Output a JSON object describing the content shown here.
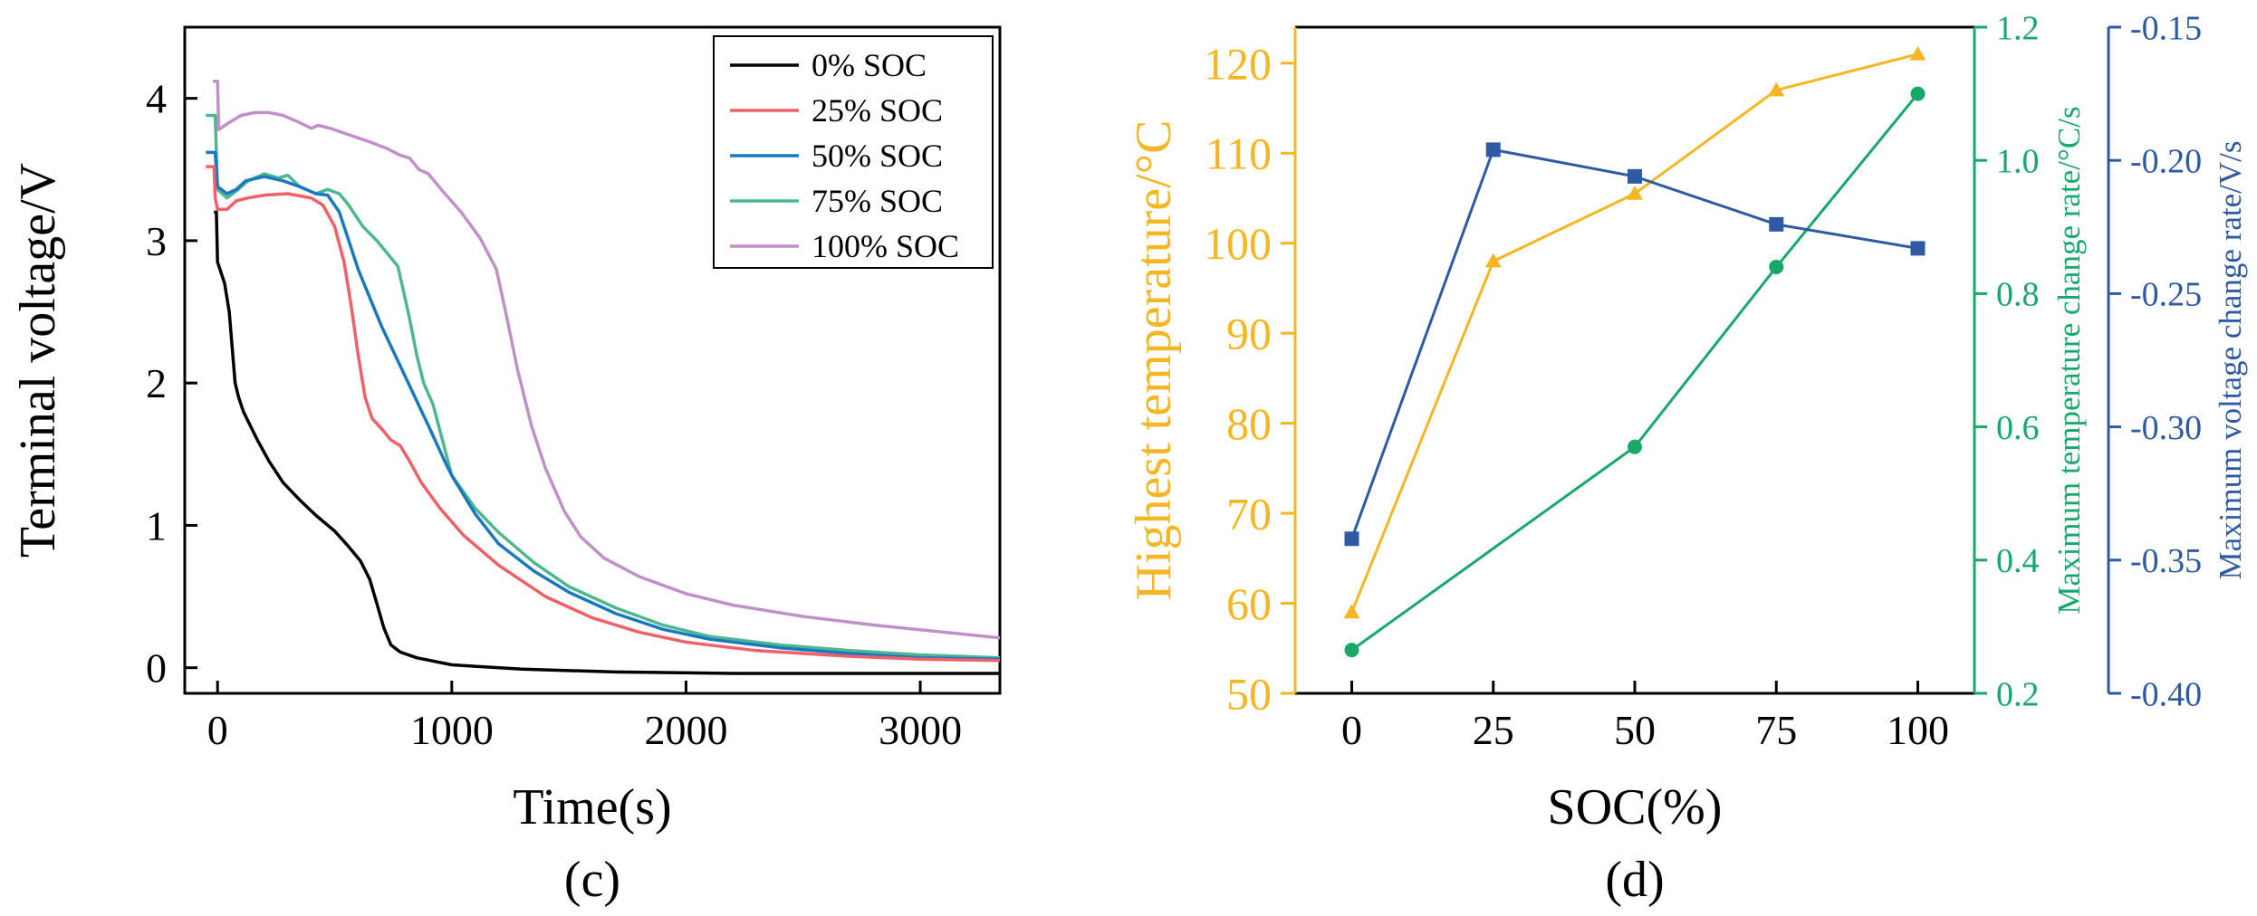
{
  "chart_data": [
    {
      "panel_label": "(c)",
      "type": "line",
      "xlabel": "Time(s)",
      "ylabel": "Terminal voltage/V",
      "xlim": [
        -140,
        3340
      ],
      "ylim": [
        -0.18,
        4.5
      ],
      "xticks": [
        0,
        1000,
        2000,
        3000
      ],
      "xtick_labels": [
        "0",
        "1000",
        "2000",
        "3000"
      ],
      "yticks": [
        0,
        1,
        2,
        3,
        4
      ],
      "ytick_labels": [
        "0",
        "1",
        "2",
        "3",
        "4"
      ],
      "legend_position": "top-right",
      "series": [
        {
          "name": "0% SOC",
          "color": "#000000",
          "points": [
            [
              -15,
              3.2
            ],
            [
              -10,
              3.2
            ],
            [
              -5,
              3.2
            ],
            [
              0,
              2.85
            ],
            [
              30,
              2.7
            ],
            [
              50,
              2.5
            ],
            [
              65,
              2.2
            ],
            [
              75,
              2.0
            ],
            [
              90,
              1.9
            ],
            [
              110,
              1.8
            ],
            [
              140,
              1.7
            ],
            [
              170,
              1.6
            ],
            [
              220,
              1.45
            ],
            [
              280,
              1.3
            ],
            [
              350,
              1.18
            ],
            [
              420,
              1.07
            ],
            [
              500,
              0.96
            ],
            [
              560,
              0.85
            ],
            [
              610,
              0.75
            ],
            [
              650,
              0.62
            ],
            [
              680,
              0.45
            ],
            [
              710,
              0.28
            ],
            [
              740,
              0.16
            ],
            [
              780,
              0.11
            ],
            [
              850,
              0.07
            ],
            [
              1000,
              0.02
            ],
            [
              1300,
              -0.01
            ],
            [
              1700,
              -0.03
            ],
            [
              2200,
              -0.04
            ],
            [
              3340,
              -0.04
            ]
          ]
        },
        {
          "name": "25% SOC",
          "color": "#f0606a",
          "points": [
            [
              -50,
              3.52
            ],
            [
              -15,
              3.52
            ],
            [
              -10,
              3.3
            ],
            [
              0,
              3.22
            ],
            [
              40,
              3.22
            ],
            [
              80,
              3.28
            ],
            [
              130,
              3.3
            ],
            [
              200,
              3.32
            ],
            [
              300,
              3.33
            ],
            [
              400,
              3.3
            ],
            [
              450,
              3.25
            ],
            [
              500,
              3.1
            ],
            [
              540,
              2.85
            ],
            [
              570,
              2.55
            ],
            [
              600,
              2.2
            ],
            [
              630,
              1.9
            ],
            [
              660,
              1.75
            ],
            [
              700,
              1.68
            ],
            [
              740,
              1.6
            ],
            [
              780,
              1.56
            ],
            [
              820,
              1.45
            ],
            [
              870,
              1.3
            ],
            [
              950,
              1.12
            ],
            [
              1050,
              0.93
            ],
            [
              1200,
              0.72
            ],
            [
              1400,
              0.5
            ],
            [
              1600,
              0.35
            ],
            [
              1800,
              0.25
            ],
            [
              2000,
              0.18
            ],
            [
              2300,
              0.12
            ],
            [
              2700,
              0.08
            ],
            [
              3000,
              0.06
            ],
            [
              3340,
              0.05
            ]
          ]
        },
        {
          "name": "50% SOC",
          "color": "#1a78c0",
          "points": [
            [
              -50,
              3.62
            ],
            [
              -10,
              3.62
            ],
            [
              0,
              3.38
            ],
            [
              40,
              3.33
            ],
            [
              80,
              3.36
            ],
            [
              120,
              3.42
            ],
            [
              200,
              3.45
            ],
            [
              280,
              3.42
            ],
            [
              350,
              3.38
            ],
            [
              420,
              3.33
            ],
            [
              470,
              3.32
            ],
            [
              520,
              3.2
            ],
            [
              600,
              2.8
            ],
            [
              700,
              2.4
            ],
            [
              800,
              2.05
            ],
            [
              900,
              1.7
            ],
            [
              970,
              1.45
            ],
            [
              1000,
              1.35
            ],
            [
              1100,
              1.08
            ],
            [
              1200,
              0.87
            ],
            [
              1350,
              0.68
            ],
            [
              1500,
              0.53
            ],
            [
              1700,
              0.38
            ],
            [
              1900,
              0.27
            ],
            [
              2100,
              0.2
            ],
            [
              2400,
              0.14
            ],
            [
              2700,
              0.1
            ],
            [
              3000,
              0.07
            ],
            [
              3340,
              0.06
            ]
          ]
        },
        {
          "name": "75% SOC",
          "color": "#4db890",
          "points": [
            [
              -50,
              3.88
            ],
            [
              -10,
              3.88
            ],
            [
              0,
              3.36
            ],
            [
              40,
              3.3
            ],
            [
              80,
              3.35
            ],
            [
              130,
              3.42
            ],
            [
              200,
              3.47
            ],
            [
              260,
              3.44
            ],
            [
              300,
              3.46
            ],
            [
              350,
              3.38
            ],
            [
              420,
              3.33
            ],
            [
              470,
              3.36
            ],
            [
              520,
              3.33
            ],
            [
              560,
              3.25
            ],
            [
              620,
              3.1
            ],
            [
              680,
              3.0
            ],
            [
              730,
              2.9
            ],
            [
              770,
              2.82
            ],
            [
              800,
              2.6
            ],
            [
              820,
              2.45
            ],
            [
              850,
              2.2
            ],
            [
              880,
              2.0
            ],
            [
              920,
              1.85
            ],
            [
              960,
              1.6
            ],
            [
              1000,
              1.35
            ],
            [
              1100,
              1.12
            ],
            [
              1200,
              0.95
            ],
            [
              1350,
              0.74
            ],
            [
              1500,
              0.57
            ],
            [
              1700,
              0.42
            ],
            [
              1900,
              0.3
            ],
            [
              2100,
              0.22
            ],
            [
              2400,
              0.16
            ],
            [
              2700,
              0.12
            ],
            [
              3000,
              0.09
            ],
            [
              3340,
              0.07
            ]
          ]
        },
        {
          "name": "100% SOC",
          "color": "#c090c8",
          "points": [
            [
              -20,
              4.12
            ],
            [
              0,
              4.12
            ],
            [
              5,
              3.78
            ],
            [
              40,
              3.82
            ],
            [
              100,
              3.88
            ],
            [
              160,
              3.9
            ],
            [
              220,
              3.9
            ],
            [
              280,
              3.88
            ],
            [
              350,
              3.83
            ],
            [
              400,
              3.79
            ],
            [
              430,
              3.81
            ],
            [
              480,
              3.79
            ],
            [
              550,
              3.75
            ],
            [
              640,
              3.7
            ],
            [
              720,
              3.65
            ],
            [
              780,
              3.6
            ],
            [
              820,
              3.58
            ],
            [
              860,
              3.5
            ],
            [
              900,
              3.47
            ],
            [
              960,
              3.35
            ],
            [
              1040,
              3.2
            ],
            [
              1120,
              3.02
            ],
            [
              1190,
              2.8
            ],
            [
              1230,
              2.5
            ],
            [
              1280,
              2.1
            ],
            [
              1340,
              1.7
            ],
            [
              1400,
              1.4
            ],
            [
              1480,
              1.1
            ],
            [
              1550,
              0.92
            ],
            [
              1650,
              0.77
            ],
            [
              1800,
              0.64
            ],
            [
              2000,
              0.52
            ],
            [
              2200,
              0.44
            ],
            [
              2500,
              0.36
            ],
            [
              2800,
              0.3
            ],
            [
              3100,
              0.25
            ],
            [
              3340,
              0.21
            ]
          ]
        }
      ]
    },
    {
      "panel_label": "(d)",
      "type": "line",
      "xlabel": "SOC(%)",
      "categories": [
        0,
        25,
        50,
        75,
        100
      ],
      "xlim": [
        -10,
        110
      ],
      "xtick_labels": [
        "0",
        "25",
        "50",
        "75",
        "100"
      ],
      "axes": {
        "left": {
          "label": "Highest temperature/°C",
          "color": "#f5b623",
          "ylim": [
            50,
            124
          ],
          "ticks": [
            50,
            60,
            70,
            80,
            90,
            100,
            110,
            120
          ],
          "tick_labels": [
            "50",
            "60",
            "70",
            "80",
            "90",
            "100",
            "110",
            "120"
          ]
        },
        "right1": {
          "label": "Maximum temperature change rate/°C/s",
          "color": "#17a86a",
          "ylim": [
            0.2,
            1.2
          ],
          "ticks": [
            0.2,
            0.4,
            0.6,
            0.8,
            1.0,
            1.2
          ],
          "tick_labels": [
            "0.2",
            "0.4",
            "0.6",
            "0.8",
            "1.0",
            "1.2"
          ]
        },
        "right2": {
          "label": "Maximum voltage change rate/V/s",
          "color": "#2e5aa3",
          "ylim": [
            -0.4,
            -0.15
          ],
          "ticks": [
            -0.4,
            -0.35,
            -0.3,
            -0.25,
            -0.2,
            -0.15
          ],
          "tick_labels": [
            "-0.40",
            "-0.35",
            "-0.30",
            "-0.25",
            "-0.20",
            "-0.15"
          ]
        }
      },
      "series": [
        {
          "name": "Highest temperature",
          "axis": "left",
          "marker": "triangle",
          "color": "#f5b623",
          "values": [
            59,
            98,
            105.5,
            117,
            121
          ]
        },
        {
          "name": "Maximum temperature change rate",
          "axis": "right1",
          "marker": "circle",
          "color": "#17a86a",
          "values": [
            0.265,
            null,
            0.57,
            0.84,
            1.1
          ]
        },
        {
          "name": "Maximum voltage change rate",
          "axis": "right2",
          "marker": "square",
          "color": "#2e5aa3",
          "values": [
            -0.342,
            -0.196,
            -0.206,
            -0.224,
            -0.233
          ]
        }
      ]
    }
  ]
}
